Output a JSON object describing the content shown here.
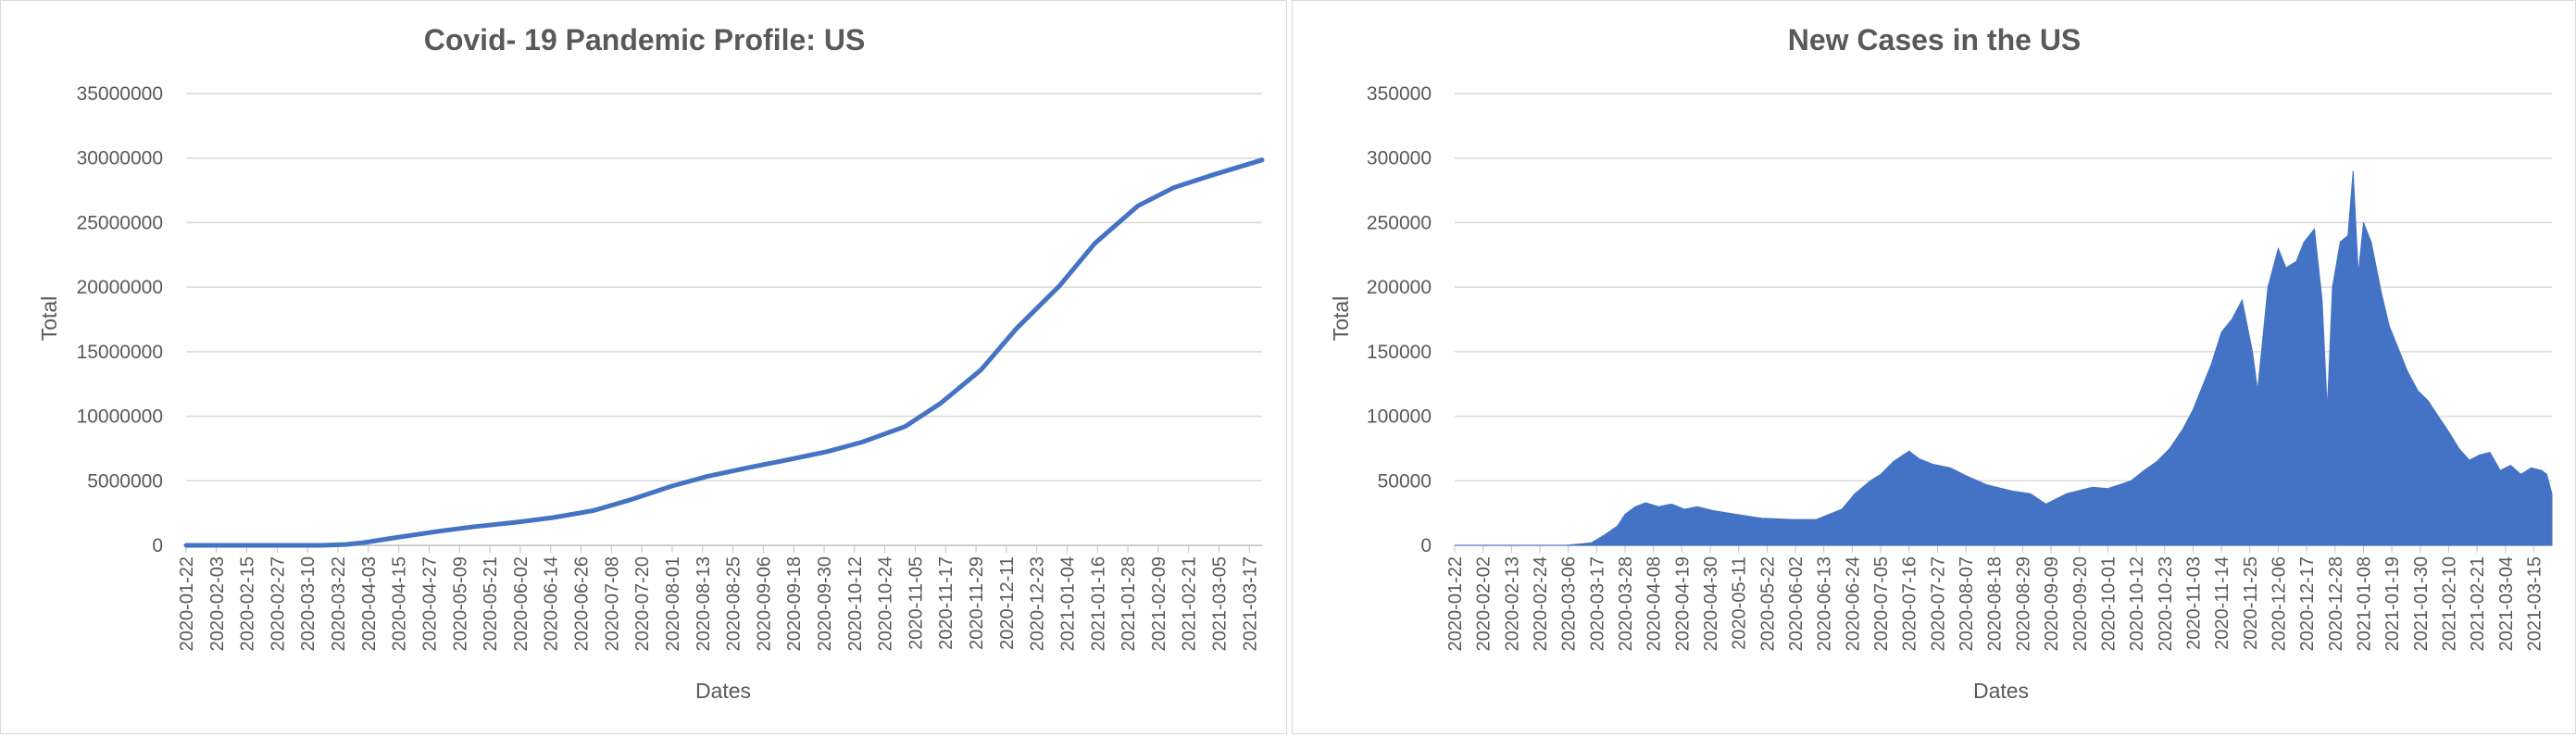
{
  "chart_data": [
    {
      "type": "line",
      "title": "Covid- 19 Pandemic Profile: US",
      "xlabel": "Dates",
      "ylabel": "Total",
      "ylim": [
        0,
        35000000
      ],
      "yticks": [
        "0",
        "5000000",
        "10000000",
        "15000000",
        "20000000",
        "25000000",
        "30000000",
        "35000000"
      ],
      "xticks": [
        "2020-01-22",
        "2020-02-03",
        "2020-02-15",
        "2020-02-27",
        "2020-03-10",
        "2020-03-22",
        "2020-04-03",
        "2020-04-15",
        "2020-04-27",
        "2020-05-09",
        "2020-05-21",
        "2020-06-02",
        "2020-06-14",
        "2020-06-26",
        "2020-07-08",
        "2020-07-20",
        "2020-08-01",
        "2020-08-13",
        "2020-08-25",
        "2020-09-06",
        "2020-09-18",
        "2020-09-30",
        "2020-10-12",
        "2020-10-24",
        "2020-11-05",
        "2020-11-17",
        "2020-11-29",
        "2020-12-11",
        "2020-12-23",
        "2021-01-04",
        "2021-01-16",
        "2021-01-28",
        "2021-02-09",
        "2021-02-21",
        "2021-03-05",
        "2021-03-17"
      ],
      "xrange": [
        "2020-01-22",
        "2021-03-22"
      ],
      "grid": true,
      "color": "#4472c4",
      "series": [
        {
          "x": [
            "2020-01-22",
            "2020-03-01",
            "2020-03-15",
            "2020-03-25",
            "2020-04-01",
            "2020-04-15",
            "2020-05-01",
            "2020-05-15",
            "2020-06-01",
            "2020-06-15",
            "2020-07-01",
            "2020-07-15",
            "2020-08-01",
            "2020-08-15",
            "2020-09-01",
            "2020-09-15",
            "2020-10-01",
            "2020-10-15",
            "2020-11-01",
            "2020-11-15",
            "2020-12-01",
            "2020-12-15",
            "2021-01-01",
            "2021-01-15",
            "2021-02-01",
            "2021-02-15",
            "2021-03-01",
            "2021-03-22"
          ],
          "y": [
            0,
            30,
            3500,
            65000,
            210000,
            640000,
            1100000,
            1450000,
            1800000,
            2150000,
            2700000,
            3500000,
            4600000,
            5350000,
            6050000,
            6600000,
            7250000,
            8000000,
            9200000,
            11000000,
            13600000,
            16800000,
            20100000,
            23400000,
            26300000,
            27700000,
            28600000,
            29850000
          ]
        }
      ]
    },
    {
      "type": "area",
      "title": "New Cases in the US",
      "xlabel": "Dates",
      "ylabel": "Total",
      "ylim": [
        0,
        350000
      ],
      "yticks": [
        "0",
        "50000",
        "100000",
        "150000",
        "200000",
        "250000",
        "300000",
        "350000"
      ],
      "xticks": [
        "2020-01-22",
        "2020-02-02",
        "2020-02-13",
        "2020-02-24",
        "2020-03-06",
        "2020-03-17",
        "2020-03-28",
        "2020-04-08",
        "2020-04-19",
        "2020-04-30",
        "2020-05-11",
        "2020-05-22",
        "2020-06-02",
        "2020-06-13",
        "2020-06-24",
        "2020-07-05",
        "2020-07-16",
        "2020-07-27",
        "2020-08-07",
        "2020-08-18",
        "2020-08-29",
        "2020-09-09",
        "2020-09-20",
        "2020-10-01",
        "2020-10-12",
        "2020-10-23",
        "2020-11-03",
        "2020-11-14",
        "2020-11-25",
        "2020-12-06",
        "2020-12-17",
        "2020-12-28",
        "2021-01-08",
        "2021-01-19",
        "2021-01-30",
        "2021-02-10",
        "2021-02-21",
        "2021-03-04",
        "2021-03-15"
      ],
      "xrange": [
        "2020-01-22",
        "2021-03-22"
      ],
      "grid": true,
      "color": "#4472c4",
      "series": [
        {
          "x": [
            "2020-01-22",
            "2020-03-05",
            "2020-03-15",
            "2020-03-20",
            "2020-03-25",
            "2020-03-28",
            "2020-04-01",
            "2020-04-05",
            "2020-04-10",
            "2020-04-15",
            "2020-04-20",
            "2020-04-25",
            "2020-05-01",
            "2020-05-10",
            "2020-05-20",
            "2020-06-01",
            "2020-06-10",
            "2020-06-20",
            "2020-06-25",
            "2020-07-01",
            "2020-07-05",
            "2020-07-10",
            "2020-07-16",
            "2020-07-20",
            "2020-07-25",
            "2020-08-01",
            "2020-08-07",
            "2020-08-15",
            "2020-08-25",
            "2020-09-01",
            "2020-09-07",
            "2020-09-15",
            "2020-09-25",
            "2020-10-01",
            "2020-10-10",
            "2020-10-15",
            "2020-10-20",
            "2020-10-25",
            "2020-10-30",
            "2020-11-03",
            "2020-11-07",
            "2020-11-10",
            "2020-11-14",
            "2020-11-18",
            "2020-11-22",
            "2020-11-26",
            "2020-11-28",
            "2020-12-02",
            "2020-12-06",
            "2020-12-09",
            "2020-12-13",
            "2020-12-16",
            "2020-12-20",
            "2020-12-23",
            "2020-12-25",
            "2020-12-27",
            "2020-12-30",
            "2021-01-02",
            "2021-01-04",
            "2021-01-06",
            "2021-01-08",
            "2021-01-11",
            "2021-01-15",
            "2021-01-18",
            "2021-01-21",
            "2021-01-25",
            "2021-01-29",
            "2021-02-02",
            "2021-02-06",
            "2021-02-10",
            "2021-02-14",
            "2021-02-18",
            "2021-02-22",
            "2021-02-26",
            "2021-03-02",
            "2021-03-06",
            "2021-03-10",
            "2021-03-14",
            "2021-03-18",
            "2021-03-20",
            "2021-03-22"
          ],
          "y": [
            0,
            0,
            2000,
            8000,
            15000,
            24000,
            30000,
            33000,
            30000,
            32000,
            28000,
            30000,
            27000,
            24000,
            21000,
            20000,
            20000,
            28000,
            40000,
            50000,
            55000,
            65000,
            73000,
            67000,
            63000,
            60000,
            54000,
            47000,
            42000,
            40000,
            32000,
            40000,
            45000,
            44000,
            50000,
            58000,
            65000,
            75000,
            90000,
            105000,
            125000,
            140000,
            165000,
            175000,
            190000,
            150000,
            120000,
            200000,
            230000,
            215000,
            220000,
            235000,
            245000,
            190000,
            105000,
            200000,
            235000,
            240000,
            290000,
            210000,
            250000,
            235000,
            195000,
            170000,
            155000,
            135000,
            120000,
            112000,
            100000,
            88000,
            75000,
            66000,
            70000,
            72000,
            58000,
            62000,
            55000,
            60000,
            58000,
            55000,
            40000
          ]
        }
      ]
    }
  ]
}
